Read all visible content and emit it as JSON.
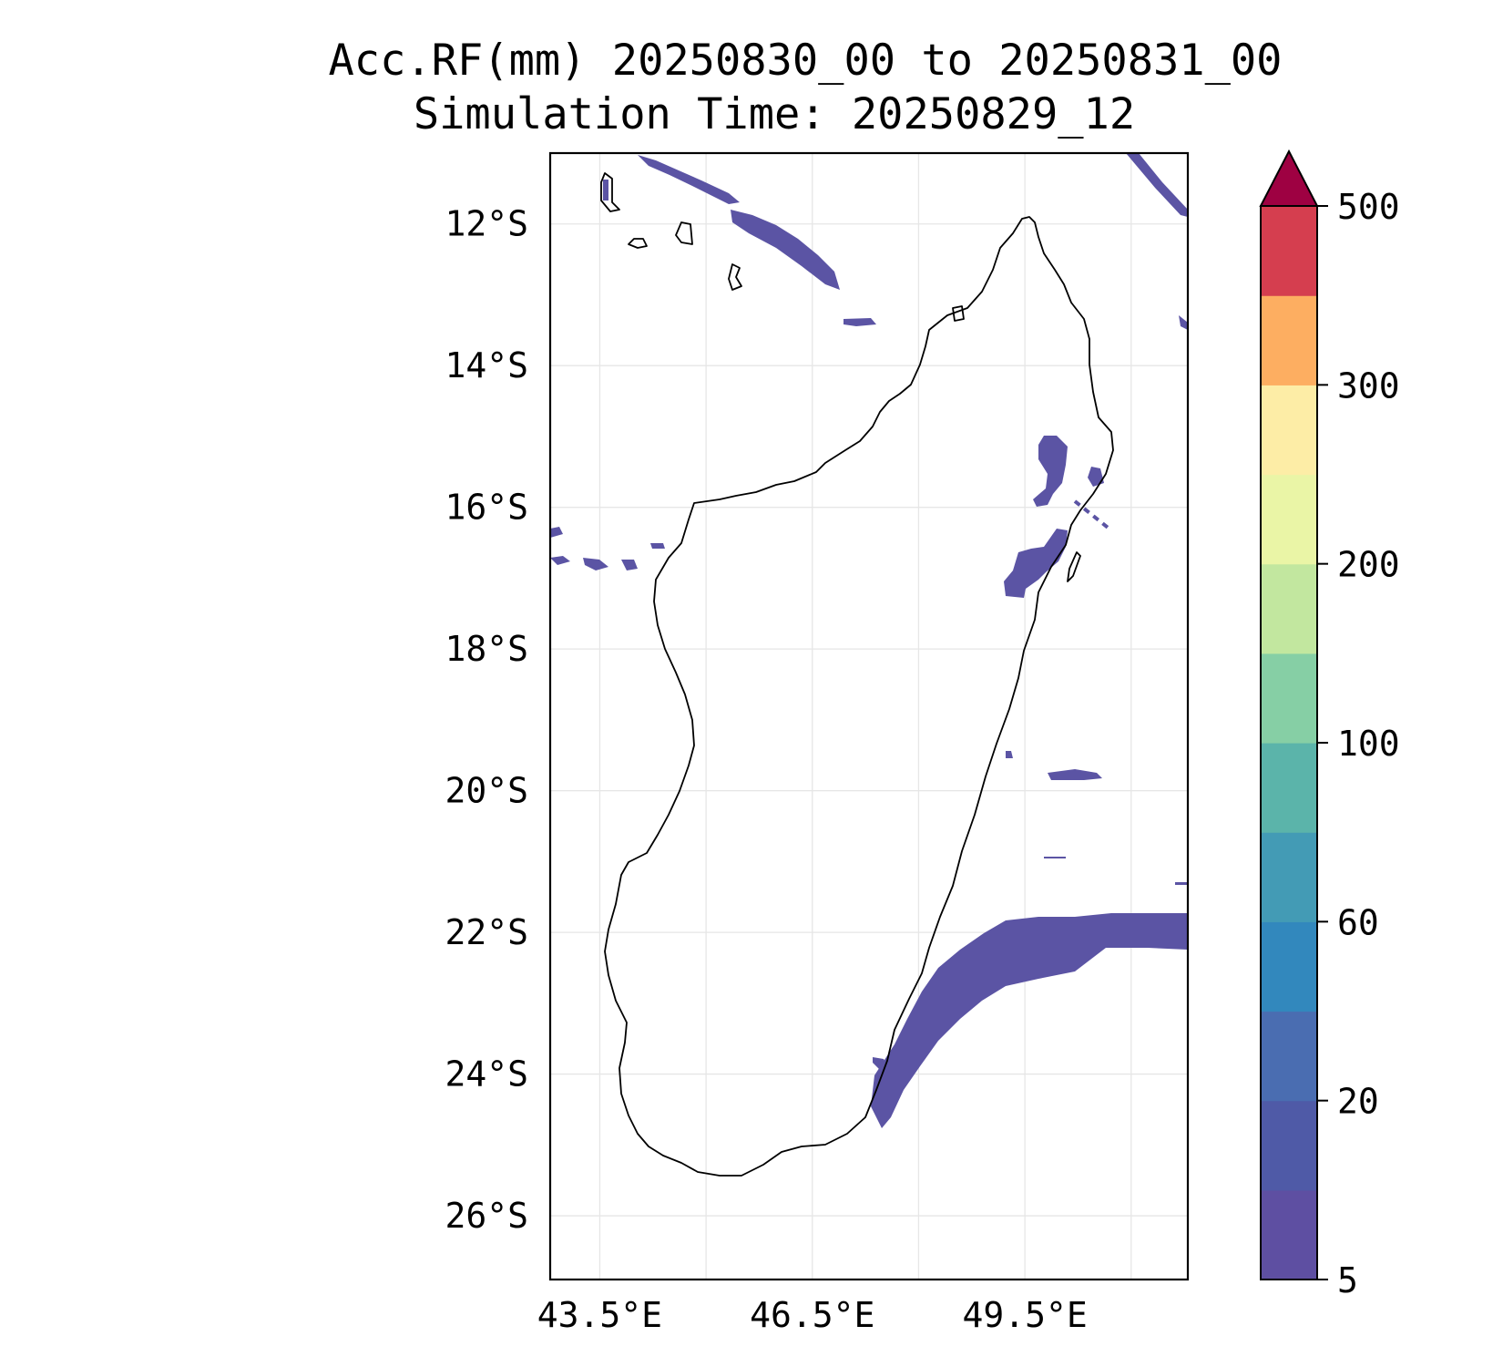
{
  "title": {
    "line1": "Acc.RF(mm) 20250830_00 to 20250831_00",
    "line2": "Simulation Time: 20250829_12"
  },
  "map": {
    "projection": "PlateCarree",
    "lon_range": [
      42.8,
      51.8
    ],
    "lat_range": [
      -26.9,
      -11.0
    ],
    "gridlines": true,
    "lat_ticks": [
      {
        "value": -12,
        "label": "12°S"
      },
      {
        "value": -14,
        "label": "14°S"
      },
      {
        "value": -16,
        "label": "16°S"
      },
      {
        "value": -18,
        "label": "18°S"
      },
      {
        "value": -20,
        "label": "20°S"
      },
      {
        "value": -22,
        "label": "22°S"
      },
      {
        "value": -24,
        "label": "24°S"
      },
      {
        "value": -26,
        "label": "26°S"
      }
    ],
    "lon_ticks": [
      {
        "value": 43.5,
        "label": "43.5°E"
      },
      {
        "value": 46.5,
        "label": "46.5°E"
      },
      {
        "value": 49.5,
        "label": "49.5°E"
      }
    ],
    "extra_gridlines_lon": [
      45.0,
      48.0,
      51.0
    ],
    "field_color": "#5b54a4"
  },
  "colorbar": {
    "extend": "max",
    "extend_color": "#9e0142",
    "colors": [
      "#5e4fa2",
      "#4f5aa7",
      "#4a6db1",
      "#3288bd",
      "#439bb5",
      "#5bb4aa",
      "#86cfa5",
      "#c2e79f",
      "#eaf5a6",
      "#fdeda6",
      "#fdae61",
      "#d53e4f"
    ],
    "tick_labels": [
      "5",
      "20",
      "60",
      "100",
      "200",
      "300",
      "500"
    ],
    "tick_bounds": [
      0,
      2,
      4,
      6,
      8,
      10,
      12
    ]
  }
}
